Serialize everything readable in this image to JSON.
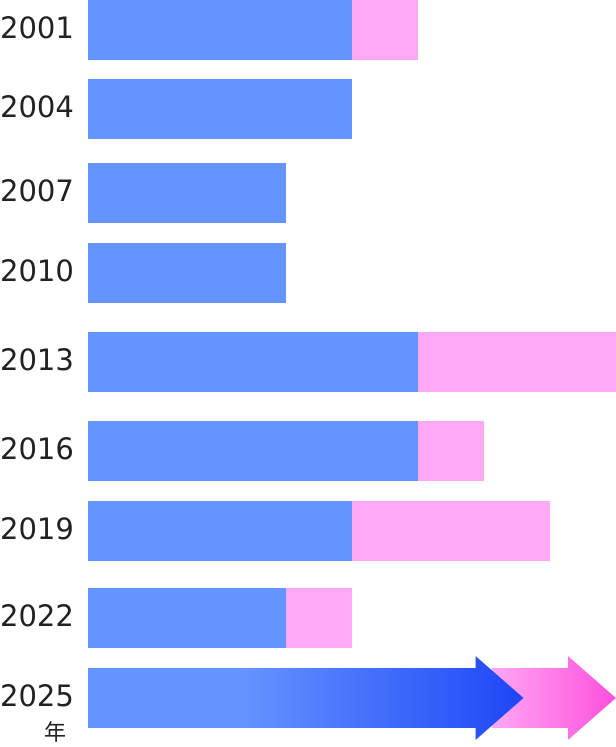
{
  "chart_data": {
    "type": "stacked-bar",
    "categories": [
      "2001",
      "2004",
      "2007",
      "2010",
      "2013",
      "2016",
      "2019",
      "2022",
      "2025"
    ],
    "unit_label": "年",
    "series": [
      {
        "color": "#6495ff",
        "values": [
          4,
          4,
          3,
          3,
          5,
          5,
          4,
          3,
          6.6
        ]
      },
      {
        "color": "#ffa8f5",
        "values": [
          1,
          0,
          0,
          0,
          3,
          1,
          3,
          1,
          1.4
        ]
      }
    ],
    "xlim": [
      0,
      8
    ]
  }
}
